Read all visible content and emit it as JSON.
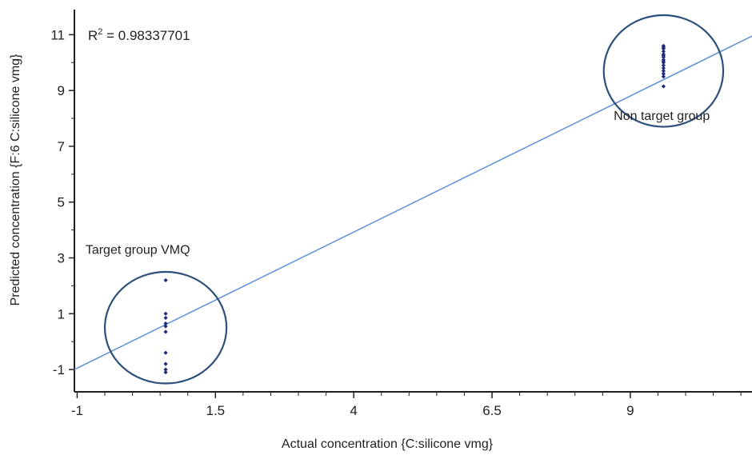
{
  "chart_data": {
    "type": "scatter",
    "xlabel": "Actual concentration {C:silicone vmg}",
    "ylabel": "Predicted concentration {F:6 C:silicone vmg}",
    "xlim": [
      -1.05,
      11.2
    ],
    "ylim": [
      -1.8,
      11.9
    ],
    "x_ticks": [
      -1,
      1.5,
      4,
      6.5,
      9
    ],
    "x_tick_labels": [
      "-1",
      "1.5",
      "4",
      "6.5",
      "9"
    ],
    "y_ticks": [
      -1,
      1,
      3,
      5,
      7,
      9,
      11
    ],
    "y_tick_labels": [
      "-1",
      "1",
      "3",
      "5",
      "7",
      "9",
      "11"
    ],
    "grid": false,
    "r_squared_label": "R",
    "r_squared_sup": "2",
    "r_squared_value": " = 0.98337701",
    "fit_line": {
      "x": [
        -1.05,
        11.2
      ],
      "y": [
        -1.0,
        10.95
      ]
    },
    "series": [
      {
        "color": "#1f2a7a",
        "points": [
          [
            0.6,
            2.2
          ],
          [
            0.6,
            1.0
          ],
          [
            0.6,
            0.85
          ],
          [
            0.6,
            0.65
          ],
          [
            0.6,
            0.55
          ],
          [
            0.6,
            0.35
          ],
          [
            0.6,
            -0.4
          ],
          [
            0.6,
            -0.8
          ],
          [
            0.6,
            -1.0
          ],
          [
            0.6,
            -1.1
          ],
          [
            9.6,
            9.15
          ],
          [
            9.6,
            9.5
          ],
          [
            9.6,
            9.6
          ],
          [
            9.6,
            9.7
          ],
          [
            9.6,
            9.8
          ],
          [
            9.6,
            9.9
          ],
          [
            9.6,
            10.0
          ],
          [
            9.6,
            10.05
          ],
          [
            9.6,
            10.1
          ],
          [
            9.6,
            10.2
          ],
          [
            9.6,
            10.25
          ],
          [
            9.6,
            10.3
          ],
          [
            9.6,
            10.4
          ],
          [
            9.6,
            10.5
          ],
          [
            9.6,
            10.55
          ],
          [
            9.6,
            10.6
          ]
        ]
      }
    ],
    "annotations": [
      {
        "text": "Target group VMQ",
        "x": -0.85,
        "y": 3.0,
        "circle": {
          "cx": 0.6,
          "cy": 0.5,
          "rx": 1.1,
          "ry": 2.0
        }
      },
      {
        "text": "Non target group",
        "x": 8.7,
        "y": 7.8,
        "circle": {
          "cx": 9.6,
          "cy": 9.7,
          "rx": 1.08,
          "ry": 2.0
        }
      }
    ],
    "colors": {
      "axis": "#231f20",
      "line": "#5b8fd6",
      "circle": "#2c4f7c",
      "points": "#1f2a7a"
    }
  }
}
